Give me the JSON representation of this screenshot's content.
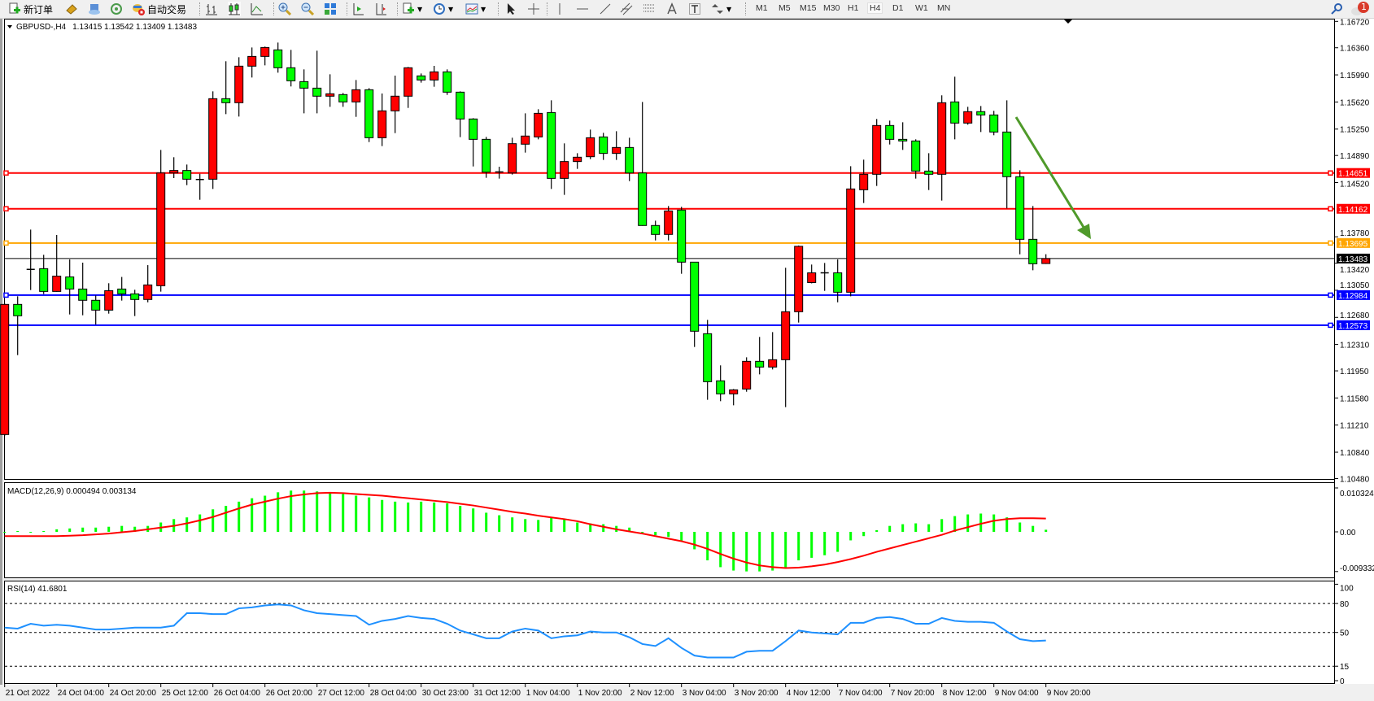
{
  "toolbar": {
    "new_order": "新订单",
    "auto_trading": "自动交易",
    "timeframes": [
      "M1",
      "M5",
      "M15",
      "M30",
      "H1",
      "H4",
      "D1",
      "W1",
      "MN"
    ],
    "selected_timeframe": "H4",
    "notification_count": "1",
    "icons": [
      "new-order-icon",
      "history-icon",
      "market-watch-icon",
      "signals-icon",
      "auto-trading-icon",
      "bar-chart-icon",
      "candlestick-icon",
      "line-chart-icon",
      "zoom-in-icon",
      "zoom-out-icon",
      "tile-windows-icon",
      "auto-scroll-icon",
      "chart-shift-icon",
      "indicators-icon",
      "periods-icon",
      "templates-icon",
      "cursor-icon",
      "crosshair-icon",
      "vertical-line-icon",
      "horizontal-line-icon",
      "trendline-icon",
      "equidistant-channel-icon",
      "fibonacci-icon",
      "text-icon",
      "text-label-icon",
      "arrows-icon",
      "search-icon",
      "notification-icon"
    ]
  },
  "chart_data": [
    {
      "type": "candlestick",
      "title": "GBPUSD-,H4",
      "header_values": "1.13415 1.13542 1.13409 1.13483",
      "bull_color": "#ff0000",
      "bear_color": "#00ff00",
      "ylim": [
        1.1048,
        1.1672
      ],
      "yticks": [
        "1.16720",
        "1.16360",
        "1.15990",
        "1.15620",
        "1.15250",
        "1.14890",
        "1.14520",
        "1.13780",
        "1.13420",
        "1.13050",
        "1.12680",
        "1.12310",
        "1.11950",
        "1.11580",
        "1.11210",
        "1.10840",
        "1.10480"
      ],
      "xticks": [
        "21 Oct 2022",
        "24 Oct 04:00",
        "24 Oct 20:00",
        "25 Oct 12:00",
        "26 Oct 04:00",
        "26 Oct 20:00",
        "27 Oct 12:00",
        "28 Oct 04:00",
        "30 Oct 23:00",
        "31 Oct 12:00",
        "1 Nov 04:00",
        "1 Nov 20:00",
        "2 Nov 12:00",
        "3 Nov 04:00",
        "3 Nov 20:00",
        "4 Nov 12:00",
        "7 Nov 04:00",
        "7 Nov 20:00",
        "8 Nov 12:00",
        "9 Nov 04:00",
        "9 Nov 20:00"
      ],
      "hlines": [
        {
          "value": "1.14651",
          "color": "#ff0000"
        },
        {
          "value": "1.14162",
          "color": "#ff0000"
        },
        {
          "value": "1.13695",
          "color": "#ffa500"
        },
        {
          "value": "1.12984",
          "color": "#0000ff"
        },
        {
          "value": "1.12573",
          "color": "#0000ff"
        }
      ],
      "current_price": "1.13483",
      "trend_arrow_color": "#4f9a2a",
      "ohlc": [
        [
          1.11081,
          1.1287,
          1.1106,
          1.12857
        ],
        [
          1.12857,
          1.12968,
          1.12165,
          1.12702
        ],
        [
          1.13331,
          1.13878,
          1.13053,
          1.13335
        ],
        [
          1.13345,
          1.13534,
          1.12998,
          1.13034
        ],
        [
          1.13034,
          1.13804,
          1.1303,
          1.13243
        ],
        [
          1.13232,
          1.13471,
          1.1272,
          1.13067
        ],
        [
          1.13067,
          1.13427,
          1.12709,
          1.12913
        ],
        [
          1.12913,
          1.12979,
          1.12583,
          1.12779
        ],
        [
          1.12779,
          1.13146,
          1.12731,
          1.13045
        ],
        [
          1.13067,
          1.13232,
          1.12909,
          1.13001
        ],
        [
          1.13001,
          1.13057,
          1.12698,
          1.12924
        ],
        [
          1.12924,
          1.13393,
          1.12886,
          1.13123
        ],
        [
          1.13112,
          1.14966,
          1.13031,
          1.14651
        ],
        [
          1.14651,
          1.14866,
          1.14581,
          1.14685
        ],
        [
          1.14685,
          1.14766,
          1.14485,
          1.14566
        ],
        [
          1.14559,
          1.1464,
          1.14285,
          1.14562
        ],
        [
          1.14566,
          1.15765,
          1.14433,
          1.15665
        ],
        [
          1.15665,
          1.16176,
          1.15454,
          1.1561
        ],
        [
          1.1561,
          1.16231,
          1.15421,
          1.16109
        ],
        [
          1.16109,
          1.16364,
          1.15954,
          1.16242
        ],
        [
          1.16242,
          1.16376,
          1.1612,
          1.16364
        ],
        [
          1.16331,
          1.16431,
          1.1602,
          1.16087
        ],
        [
          1.16087,
          1.16331,
          1.15832,
          1.15909
        ],
        [
          1.15898,
          1.16065,
          1.15465,
          1.15809
        ],
        [
          1.15809,
          1.1632,
          1.15465,
          1.15699
        ],
        [
          1.15699,
          1.15998,
          1.15554,
          1.15732
        ],
        [
          1.15721,
          1.15743,
          1.15554,
          1.15621
        ],
        [
          1.15621,
          1.1592,
          1.15417,
          1.15787
        ],
        [
          1.15787,
          1.15809,
          1.15073,
          1.15132
        ],
        [
          1.15132,
          1.15736,
          1.15018,
          1.15499
        ],
        [
          1.15499,
          1.1598,
          1.15195,
          1.15699
        ],
        [
          1.15699,
          1.16098,
          1.15539,
          1.16087
        ],
        [
          1.15976,
          1.16009,
          1.15884,
          1.1592
        ],
        [
          1.1592,
          1.16113,
          1.15828,
          1.16031
        ],
        [
          1.16031,
          1.16065,
          1.15717,
          1.15754
        ],
        [
          1.15754,
          1.15765,
          1.1514,
          1.15388
        ],
        [
          1.15388,
          1.15399,
          1.1474,
          1.1511
        ],
        [
          1.1511,
          1.15143,
          1.14585,
          1.14662
        ],
        [
          1.14662,
          1.14736,
          1.14574,
          1.14665
        ],
        [
          1.14651,
          1.15132,
          1.14629,
          1.15051
        ],
        [
          1.15044,
          1.15465,
          1.14929,
          1.15155
        ],
        [
          1.15143,
          1.15521,
          1.1511,
          1.15465
        ],
        [
          1.15476,
          1.15643,
          1.14433,
          1.14577
        ],
        [
          1.14577,
          1.15055,
          1.14352,
          1.14807
        ],
        [
          1.14807,
          1.14921,
          1.14707,
          1.14866
        ],
        [
          1.14873,
          1.15243,
          1.1484,
          1.15132
        ],
        [
          1.15143,
          1.15199,
          1.14829,
          1.14918
        ],
        [
          1.14918,
          1.15221,
          1.14829,
          1.14999
        ],
        [
          1.14999,
          1.15132,
          1.1454,
          1.14651
        ],
        [
          1.14651,
          1.15621,
          1.1393,
          1.13934
        ],
        [
          1.13934,
          1.14,
          1.1373,
          1.13812
        ],
        [
          1.13812,
          1.142,
          1.1373,
          1.14133
        ],
        [
          1.14145,
          1.14189,
          1.13275,
          1.13434
        ],
        [
          1.13434,
          1.13434,
          1.12276,
          1.12491
        ],
        [
          1.12457,
          1.12646,
          1.11555,
          1.11802
        ],
        [
          1.11814,
          1.12025,
          1.11536,
          1.11636
        ],
        [
          1.11636,
          1.11702,
          1.1148,
          1.11691
        ],
        [
          1.11702,
          1.12135,
          1.11665,
          1.1208
        ],
        [
          1.1208,
          1.12413,
          1.11902,
          1.12002
        ],
        [
          1.12002,
          1.12479,
          1.11969,
          1.12102
        ],
        [
          1.12102,
          1.13357,
          1.11455,
          1.12757
        ],
        [
          1.12757,
          1.13661,
          1.12609,
          1.1365
        ],
        [
          1.13155,
          1.13401,
          1.13144,
          1.13288
        ],
        [
          1.13292,
          1.13423,
          1.13042,
          1.13288
        ],
        [
          1.13288,
          1.13471,
          1.12886,
          1.13023
        ],
        [
          1.13023,
          1.14744,
          1.12968,
          1.14433
        ],
        [
          1.14422,
          1.14833,
          1.14241,
          1.14633
        ],
        [
          1.14633,
          1.15388,
          1.14474,
          1.15299
        ],
        [
          1.15299,
          1.15366,
          1.1504,
          1.1511
        ],
        [
          1.1511,
          1.15343,
          1.14966,
          1.15088
        ],
        [
          1.15088,
          1.1511,
          1.14574,
          1.14677
        ],
        [
          1.14677,
          1.14921,
          1.14418,
          1.14633
        ],
        [
          1.14633,
          1.1571,
          1.14274,
          1.1561
        ],
        [
          1.15621,
          1.15965,
          1.1511,
          1.15332
        ],
        [
          1.15332,
          1.15554,
          1.1531,
          1.15488
        ],
        [
          1.15488,
          1.15565,
          1.1521,
          1.15443
        ],
        [
          1.15443,
          1.15499,
          1.15166,
          1.1521
        ],
        [
          1.1521,
          1.15643,
          1.14167,
          1.146
        ],
        [
          1.146,
          1.14688,
          1.13541,
          1.13745
        ],
        [
          1.13745,
          1.142,
          1.13323,
          1.13412
        ],
        [
          1.13415,
          1.13542,
          1.13409,
          1.13483
        ]
      ]
    },
    {
      "type": "bar",
      "title": "MACD(12,26,9) 0.000494 0.003134",
      "ylim": [
        -0.009332,
        0.010324
      ],
      "yticks": [
        "0.010324",
        "0.00",
        "-0.009332"
      ],
      "histogram_color": "#00ff00",
      "signal_color": "#ff0000",
      "macd": [
        -0.0002,
        0.0002,
        0,
        0.0002,
        0.0006,
        0.0008,
        0.001,
        0.001,
        0.0012,
        0.0014,
        0.0012,
        0.0014,
        0.0022,
        0.003,
        0.0034,
        0.0041,
        0.0053,
        0.0061,
        0.0071,
        0.0079,
        0.0085,
        0.0093,
        0.0097,
        0.0097,
        0.0095,
        0.0093,
        0.0089,
        0.0085,
        0.0081,
        0.0075,
        0.0071,
        0.0069,
        0.0071,
        0.0069,
        0.0067,
        0.0061,
        0.0055,
        0.0045,
        0.0039,
        0.0034,
        0.003,
        0.0028,
        0.0034,
        0.003,
        0.0022,
        0.002,
        0.0018,
        0.0014,
        0.001,
        0,
        -0.0008,
        -0.0012,
        -0.0022,
        -0.0041,
        -0.0067,
        -0.0083,
        -0.0091,
        -0.0093,
        -0.0093,
        -0.0091,
        -0.0085,
        -0.0067,
        -0.0061,
        -0.0055,
        -0.0047,
        -0.002,
        -0.001,
        0.0004,
        0.0014,
        0.0018,
        0.002,
        0.0018,
        0.003,
        0.0037,
        0.0041,
        0.0043,
        0.0041,
        0.0034,
        0.0022,
        0.0014,
        0.000494
      ],
      "signal": [
        -0.001,
        -0.001,
        -0.001,
        -0.001,
        -0.001,
        -0.0009,
        -0.0008,
        -0.0006,
        -0.0004,
        -0.0001,
        0.0002,
        0.0006,
        0.001,
        0.0014,
        0.002,
        0.0027,
        0.0035,
        0.0045,
        0.0055,
        0.0064,
        0.0071,
        0.0078,
        0.0084,
        0.0088,
        0.0091,
        0.0092,
        0.0091,
        0.0089,
        0.0087,
        0.0085,
        0.0082,
        0.0079,
        0.0076,
        0.0073,
        0.007,
        0.0066,
        0.0062,
        0.0057,
        0.0052,
        0.0047,
        0.0043,
        0.0038,
        0.0034,
        0.003,
        0.0025,
        0.0018,
        0.0012,
        0.0006,
        0.0001,
        -0.0004,
        -0.001,
        -0.0016,
        -0.0022,
        -0.003,
        -0.004,
        -0.0052,
        -0.0063,
        -0.0072,
        -0.0079,
        -0.0083,
        -0.0085,
        -0.0084,
        -0.0081,
        -0.0077,
        -0.0071,
        -0.0064,
        -0.0056,
        -0.0047,
        -0.0039,
        -0.0031,
        -0.0023,
        -0.0015,
        -0.0007,
        0.0003,
        0.0011,
        0.0019,
        0.0026,
        0.003,
        0.0032,
        0.0032,
        0.003134
      ]
    },
    {
      "type": "line",
      "title": "RSI(14) 41.6801",
      "ylim": [
        0,
        100
      ],
      "yticks": [
        "100",
        "80",
        "50",
        "15",
        "0"
      ],
      "levels": [
        80,
        50,
        15
      ],
      "line_color": "#1e90ff",
      "values": [
        55,
        54,
        59,
        57,
        58,
        57,
        55,
        53,
        53,
        54,
        55,
        55,
        55,
        57,
        70,
        70,
        69,
        69,
        75,
        76,
        78,
        79,
        78,
        73,
        70,
        69,
        68,
        67,
        58,
        62,
        64,
        67,
        65,
        64,
        59,
        52,
        48,
        44,
        44,
        51,
        54,
        52,
        44,
        46,
        47,
        51,
        50,
        50,
        45,
        38,
        36,
        44,
        34,
        26,
        24,
        24,
        24,
        30,
        31,
        31,
        41,
        52,
        50,
        49,
        48,
        60,
        60,
        65,
        66,
        64,
        59,
        59,
        65,
        62,
        61,
        61,
        60,
        51,
        43,
        41,
        41.6801
      ]
    }
  ]
}
